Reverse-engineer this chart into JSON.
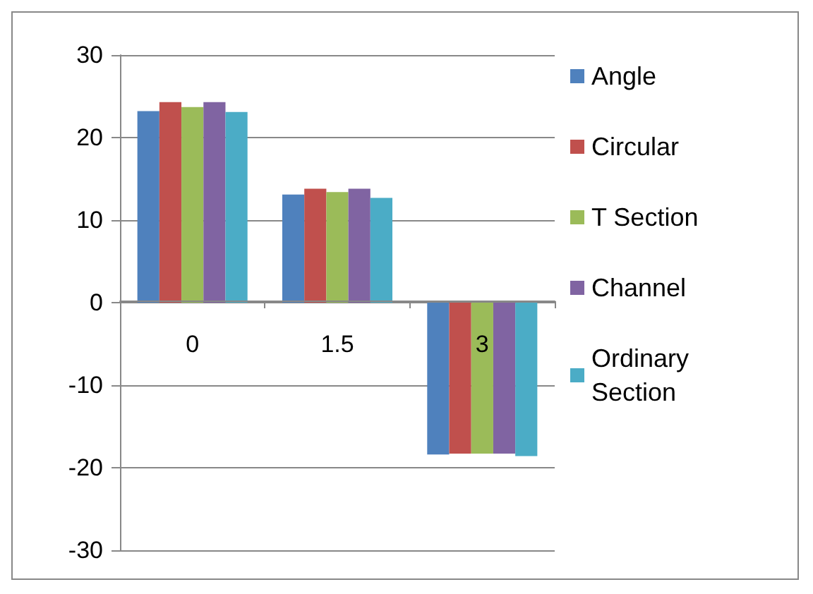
{
  "chart_data": {
    "type": "bar",
    "categories": [
      "0",
      "1.5",
      "3"
    ],
    "series": [
      {
        "name": "Angle",
        "color": "#4f81bd",
        "values": [
          23.2,
          13.1,
          -18.4
        ]
      },
      {
        "name": "Circular",
        "color": "#c0504d",
        "values": [
          24.3,
          13.8,
          -18.3
        ]
      },
      {
        "name": "T Section",
        "color": "#9bbb59",
        "values": [
          23.7,
          13.4,
          -18.3
        ]
      },
      {
        "name": "Channel",
        "color": "#8064a2",
        "values": [
          24.3,
          13.8,
          -18.3
        ]
      },
      {
        "name": "Ordinary\nSection",
        "color": "#4bacc6",
        "values": [
          23.1,
          12.7,
          -18.6
        ]
      }
    ],
    "ylim": [
      -30,
      30
    ],
    "yticks": [
      -30,
      -20,
      -10,
      0,
      10,
      20,
      30
    ],
    "grid": "y",
    "legend": "right"
  }
}
